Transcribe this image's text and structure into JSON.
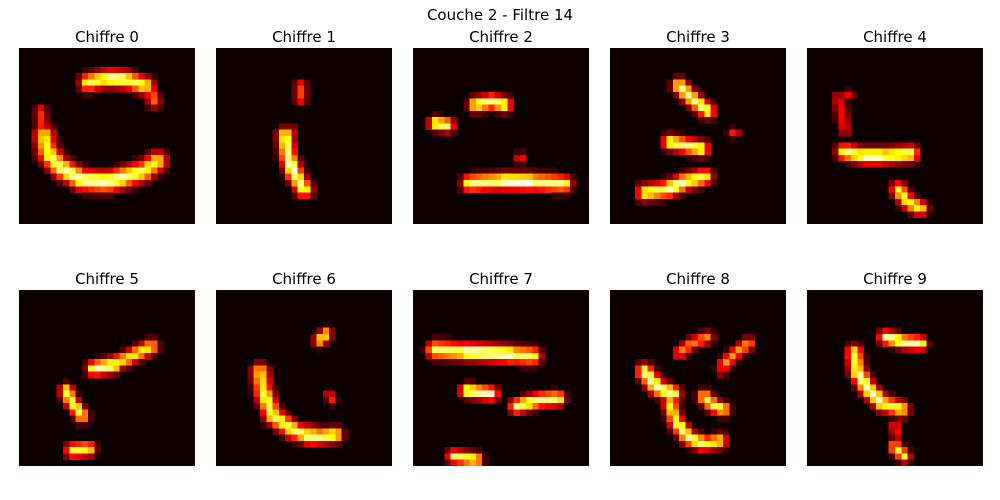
{
  "figure": {
    "title": "Couche 2 - Filtre 14"
  },
  "colors": {
    "background": "#0d0000",
    "colormap": "hot"
  },
  "chart_data": {
    "type": "heatmap",
    "title": "Couche 2 - Filtre 14",
    "grid": false,
    "axes_visible": false,
    "colormap": "hot",
    "value_range": [
      0,
      1
    ],
    "grid_size": [
      28,
      28
    ],
    "panels": [
      {
        "title": "Chiffre 0",
        "strokes": [
          {
            "points": [
              [
                11,
                5.5
              ],
              [
                14,
                4.8
              ],
              [
                17,
                5
              ],
              [
                20,
                6
              ]
            ],
            "peak": 0.95,
            "width": 1.4
          },
          {
            "points": [
              [
                20,
                6
              ],
              [
                21,
                7
              ],
              [
                21.5,
                8.5
              ]
            ],
            "peak": 0.55,
            "width": 1.1
          },
          {
            "points": [
              [
                4,
                14
              ],
              [
                4.5,
                16.5
              ],
              [
                6.5,
                19
              ],
              [
                10,
                21
              ],
              [
                14,
                21.3
              ],
              [
                17,
                20.5
              ],
              [
                20,
                19.5
              ],
              [
                22,
                18
              ]
            ],
            "peak": 0.95,
            "width": 1.6
          },
          {
            "points": [
              [
                3.5,
                10
              ],
              [
                3.7,
                12.5
              ],
              [
                4,
                14
              ]
            ],
            "peak": 0.45,
            "width": 1.0
          }
        ]
      },
      {
        "title": "Chiffre 1",
        "strokes": [
          {
            "points": [
              [
                13.5,
                6
              ],
              [
                13.5,
                8
              ]
            ],
            "peak": 0.45,
            "width": 1.0
          },
          {
            "points": [
              [
                11,
                14
              ],
              [
                11.5,
                17.5
              ],
              [
                12.5,
                20
              ],
              [
                14,
                22.5
              ]
            ],
            "peak": 1.0,
            "width": 1.3
          },
          {
            "points": [
              [
                12,
                13
              ],
              [
                12.2,
                14
              ]
            ],
            "peak": 0.35,
            "width": 0.8
          }
        ]
      },
      {
        "title": "Chiffre 2",
        "strokes": [
          {
            "points": [
              [
                10,
                9
              ],
              [
                12.5,
                8.5
              ],
              [
                14.5,
                9
              ]
            ],
            "peak": 0.95,
            "width": 1.2
          },
          {
            "points": [
              [
                3.5,
                12
              ],
              [
                5.5,
                12.3
              ]
            ],
            "peak": 0.9,
            "width": 1.1
          },
          {
            "points": [
              [
                9,
                21.5
              ],
              [
                14,
                21.2
              ],
              [
                19,
                21.3
              ],
              [
                24,
                21.6
              ]
            ],
            "peak": 1.0,
            "width": 1.3
          },
          {
            "points": [
              [
                17,
                17.5
              ],
              [
                17.2,
                17.5
              ]
            ],
            "peak": 0.4,
            "width": 0.9
          }
        ]
      },
      {
        "title": "Chiffre 3",
        "strokes": [
          {
            "points": [
              [
                11,
                6
              ],
              [
                13,
                8
              ],
              [
                15.5,
                10
              ]
            ],
            "peak": 0.95,
            "width": 1.2
          },
          {
            "points": [
              [
                9.5,
                15
              ],
              [
                12,
                15.5
              ],
              [
                14.5,
                16
              ]
            ],
            "peak": 0.95,
            "width": 1.2
          },
          {
            "points": [
              [
                5.5,
                23
              ],
              [
                9,
                22.5
              ],
              [
                12,
                21.3
              ],
              [
                15,
                20.5
              ]
            ],
            "peak": 0.95,
            "width": 1.3
          },
          {
            "points": [
              [
                19.5,
                13.5
              ],
              [
                20,
                13.5
              ]
            ],
            "peak": 0.4,
            "width": 0.8
          }
        ]
      },
      {
        "title": "Chiffre 4",
        "strokes": [
          {
            "points": [
              [
                5,
                8
              ],
              [
                5.5,
                10
              ],
              [
                6,
                13
              ]
            ],
            "peak": 0.4,
            "width": 1.0
          },
          {
            "points": [
              [
                6,
                16.5
              ],
              [
                9,
                17.2
              ],
              [
                12,
                17.2
              ],
              [
                16.5,
                16.8
              ]
            ],
            "peak": 1.0,
            "width": 1.3
          },
          {
            "points": [
              [
                14.5,
                22.5
              ],
              [
                16,
                24.5
              ],
              [
                18,
                25.5
              ]
            ],
            "peak": 0.85,
            "width": 1.2
          },
          {
            "points": [
              [
                6.5,
                7.5
              ],
              [
                6.8,
                7.5
              ]
            ],
            "peak": 0.35,
            "width": 0.8
          }
        ]
      },
      {
        "title": "Chiffre 5",
        "strokes": [
          {
            "points": [
              [
                13,
                12.3
              ],
              [
                17,
                11
              ],
              [
                21,
                9
              ]
            ],
            "peak": 0.8,
            "width": 1.2
          },
          {
            "points": [
              [
                12,
                12.5
              ],
              [
                15,
                12
              ]
            ],
            "peak": 0.95,
            "width": 1.2
          },
          {
            "points": [
              [
                7.5,
                16
              ],
              [
                8.5,
                18
              ],
              [
                10,
                20
              ]
            ],
            "peak": 0.9,
            "width": 1.1
          },
          {
            "points": [
              [
                8.5,
                25.5
              ],
              [
                11,
                25.3
              ]
            ],
            "peak": 0.8,
            "width": 1.2
          }
        ]
      },
      {
        "title": "Chiffre 6",
        "strokes": [
          {
            "points": [
              [
                7,
                13
              ],
              [
                7.5,
                16
              ],
              [
                9,
                20
              ],
              [
                12.5,
                22.5
              ],
              [
                15.5,
                23
              ]
            ],
            "peak": 0.85,
            "width": 1.4
          },
          {
            "points": [
              [
                12,
                22
              ],
              [
                15,
                23.5
              ],
              [
                19,
                23
              ]
            ],
            "peak": 0.95,
            "width": 1.2
          },
          {
            "points": [
              [
                16.5,
                8
              ],
              [
                17.5,
                7
              ]
            ],
            "peak": 0.75,
            "width": 1.0
          },
          {
            "points": [
              [
                18,
                16.5
              ],
              [
                18.5,
                17.5
              ]
            ],
            "peak": 0.4,
            "width": 0.8
          }
        ]
      },
      {
        "title": "Chiffre 7",
        "strokes": [
          {
            "points": [
              [
                3.5,
                9.5
              ],
              [
                8,
                9.8
              ],
              [
                12,
                10
              ],
              [
                16,
                10.3
              ],
              [
                19,
                10.5
              ]
            ],
            "peak": 1.0,
            "width": 1.4
          },
          {
            "points": [
              [
                8.5,
                16
              ],
              [
                12.5,
                16.5
              ]
            ],
            "peak": 0.95,
            "width": 1.1
          },
          {
            "points": [
              [
                16.5,
                18.5
              ],
              [
                20,
                17.5
              ],
              [
                23,
                17.3
              ]
            ],
            "peak": 0.95,
            "width": 1.2
          },
          {
            "points": [
              [
                6.5,
                26.5
              ],
              [
                10,
                27
              ]
            ],
            "peak": 0.85,
            "width": 1.1
          }
        ]
      },
      {
        "title": "Chiffre 8",
        "strokes": [
          {
            "points": [
              [
                5.5,
                13
              ],
              [
                7.5,
                15.5
              ],
              [
                10,
                16.5
              ]
            ],
            "peak": 1.0,
            "width": 1.3
          },
          {
            "points": [
              [
                11,
                10
              ],
              [
                13,
                8.5
              ],
              [
                15.5,
                7.5
              ]
            ],
            "peak": 0.6,
            "width": 1.0
          },
          {
            "points": [
              [
                18,
                12
              ],
              [
                20,
                10
              ],
              [
                22,
                8.5
              ]
            ],
            "peak": 0.65,
            "width": 1.0
          },
          {
            "points": [
              [
                15,
                17
              ],
              [
                16.5,
                18.5
              ],
              [
                18,
                19
              ]
            ],
            "peak": 0.9,
            "width": 1.1
          },
          {
            "points": [
              [
                9.5,
                18
              ],
              [
                10.5,
                21
              ],
              [
                12.5,
                23.5
              ],
              [
                15,
                24.5
              ],
              [
                17.5,
                24
              ]
            ],
            "peak": 0.9,
            "width": 1.2
          },
          {
            "points": [
              [
                17.5,
                12.5
              ],
              [
                17.8,
                13
              ]
            ],
            "peak": 0.35,
            "width": 0.8
          }
        ]
      },
      {
        "title": "Chiffre 9",
        "strokes": [
          {
            "points": [
              [
                12.5,
                7.5
              ],
              [
                15.5,
                8.3
              ],
              [
                18,
                8.5
              ]
            ],
            "peak": 1.0,
            "width": 1.1
          },
          {
            "points": [
              [
                7.5,
                10
              ],
              [
                8,
                13
              ],
              [
                9.5,
                15.5
              ],
              [
                12,
                18
              ],
              [
                15,
                19
              ]
            ],
            "peak": 0.95,
            "width": 1.3
          },
          {
            "points": [
              [
                14,
                25
              ],
              [
                15.5,
                26.5
              ]
            ],
            "peak": 0.8,
            "width": 1.0
          },
          {
            "points": [
              [
                14,
                21.5
              ],
              [
                14.2,
                23
              ]
            ],
            "peak": 0.45,
            "width": 0.8
          }
        ]
      }
    ]
  }
}
